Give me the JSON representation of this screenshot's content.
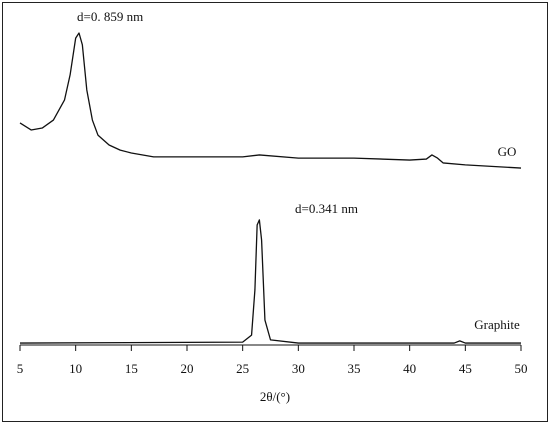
{
  "chart_data": {
    "type": "line",
    "xlabel": "2θ/(°)",
    "xlim": [
      5,
      50
    ],
    "xticks": [
      5,
      10,
      15,
      20,
      25,
      30,
      35,
      40,
      45,
      50
    ],
    "ylim": [
      0,
      100
    ],
    "grid": false,
    "annotations": [
      "d=0. 859 nm",
      "d=0.341 nm"
    ],
    "series": [
      {
        "name": "GO",
        "color": "#111111",
        "x": [
          5,
          6,
          7,
          8,
          9,
          9.5,
          10,
          10.3,
          10.6,
          11,
          11.5,
          12,
          13,
          14,
          15,
          17,
          20,
          25,
          26.5,
          30,
          35,
          40,
          41.5,
          42,
          42.5,
          43,
          45,
          50
        ],
        "values": [
          69.4,
          67.2,
          67.8,
          70.3,
          76.6,
          84.4,
          95.9,
          97.5,
          93.8,
          79.7,
          70.3,
          65.6,
          62.5,
          60.9,
          60,
          58.8,
          58.8,
          58.8,
          59.4,
          58.4,
          58.4,
          57.8,
          58.1,
          59.4,
          58.4,
          56.9,
          56.3,
          55.3
        ]
      },
      {
        "name": "Graphite",
        "color": "#111111",
        "x": [
          5,
          25,
          25.8,
          26.1,
          26.3,
          26.5,
          26.7,
          27,
          27.5,
          30,
          44,
          44.5,
          45,
          50
        ],
        "values": [
          0.6,
          0.9,
          3.1,
          17.2,
          37.5,
          39.1,
          32.8,
          7.8,
          1.6,
          0.6,
          0.6,
          1.3,
          0.6,
          0.6
        ]
      }
    ]
  }
}
